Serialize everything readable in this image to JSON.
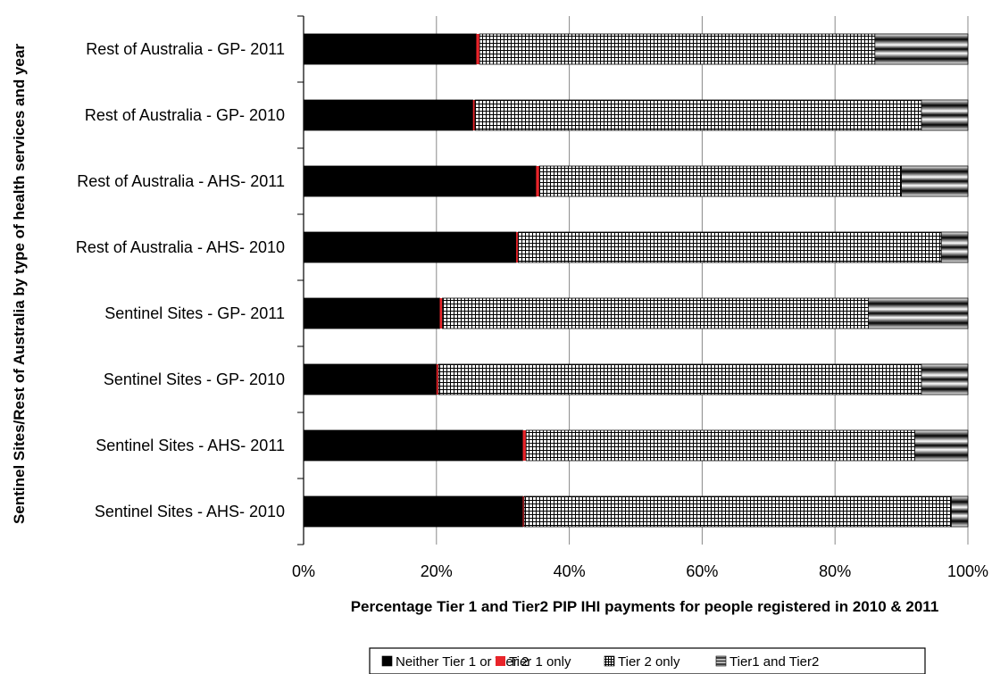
{
  "chart_data": {
    "type": "bar",
    "orientation": "horizontal",
    "stacked": true,
    "percent_stacked": true,
    "categories": [
      "Rest of Australia - GP- 2011",
      "Rest of Australia - GP- 2010",
      "Rest of Australia - AHS- 2011",
      "Rest of Australia - AHS- 2010",
      "Sentinel Sites - GP- 2011",
      "Sentinel Sites - GP- 2010",
      "Sentinel Sites - AHS- 2011",
      "Sentinel Sites - AHS- 2010"
    ],
    "series": [
      {
        "name": "Neither Tier 1 or Tier 2",
        "values": [
          26,
          25.5,
          35,
          32,
          20.5,
          20,
          33,
          33
        ]
      },
      {
        "name": "Tier 1 only",
        "values": [
          0.5,
          0.3,
          0.5,
          0.3,
          0.4,
          0.3,
          0.5,
          0.2
        ]
      },
      {
        "name": "Tier 2 only",
        "values": [
          59.5,
          67.2,
          54.5,
          63.7,
          64.1,
          72.7,
          58.5,
          64.3
        ]
      },
      {
        "name": "Tier1 and Tier2",
        "values": [
          14,
          7,
          10,
          4,
          15,
          7,
          8,
          2.5
        ]
      }
    ],
    "xlim": [
      0,
      100
    ],
    "x_ticks": [
      "0%",
      "20%",
      "40%",
      "60%",
      "80%",
      "100%"
    ],
    "xlabel": "Percentage Tier 1 and Tier2 PIP IHI payments for people registered in 2010 & 2011",
    "ylabel": "Sentinel Sites/Rest of Australia by type of health services and year",
    "grid": "vertical",
    "legend_position": "bottom-right",
    "colors": {
      "neither": "#000000",
      "tier1": "#e8242a",
      "tier2_pattern": "#000000",
      "both_pattern": "#000000"
    }
  }
}
